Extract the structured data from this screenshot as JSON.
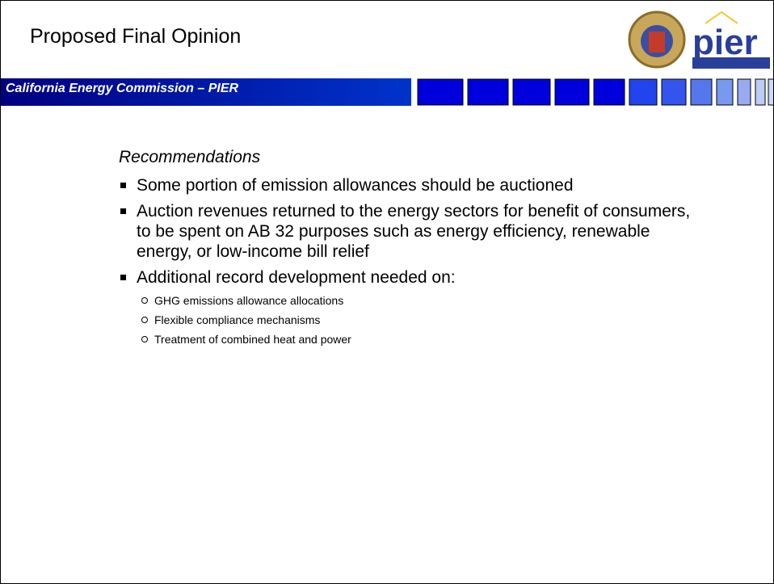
{
  "header": {
    "title": "Proposed Final Opinion",
    "subtitle": "California Energy Commission – PIER",
    "logo_text": "pier"
  },
  "body": {
    "heading": "Recommendations",
    "bullets": [
      {
        "text": "Some portion of emission allowances should be auctioned"
      },
      {
        "text": "Auction revenues returned to the energy sectors for benefit of consumers, to be spent on AB 32 purposes such as energy efficiency, renewable energy, or low-income bill relief"
      },
      {
        "text": "Additional record development needed on:",
        "sub": [
          "GHG emissions allowance allocations",
          "Flexible compliance mechanisms",
          "Treatment of combined heat and power"
        ]
      }
    ]
  }
}
